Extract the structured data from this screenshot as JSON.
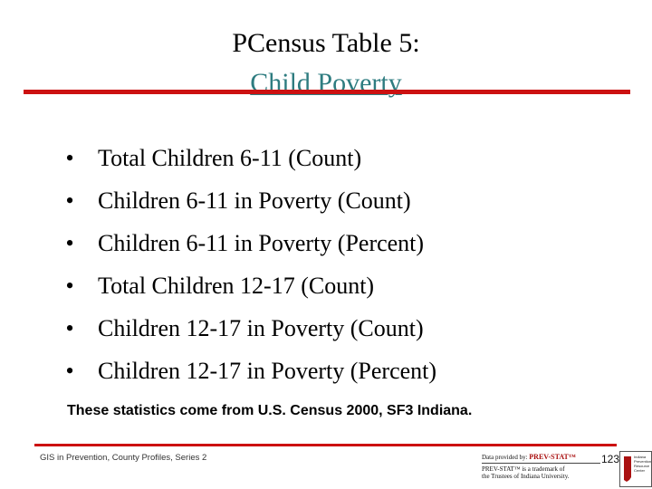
{
  "title": {
    "line1": "PCensus Table 5:",
    "line2": "Child Poverty"
  },
  "bullets": [
    "Total Children 6-11 (Count)",
    "Children 6-11 in Poverty (Count)",
    "Children 6-11 in Poverty (Percent)",
    "Total Children 12-17 (Count)",
    "Children 12-17 in Poverty (Count)",
    "Children 12-17 in Poverty (Percent)"
  ],
  "bullet_glyph": "•",
  "note": "These statistics come from U.S. Census 2000, SF3 Indiana.",
  "footer": {
    "left_text": "GIS in Prevention, County Profiles, Series 2",
    "provided_by": "Data provided by:",
    "brand": "PREV-STAT™",
    "trademark_line1": "PREV-STAT™ is a trademark of",
    "trademark_line2": "the Trustees of Indiana University.",
    "slide_number": "123",
    "logo_text": [
      "Indiana",
      "Prevention",
      "Resource",
      "Center"
    ]
  },
  "colors": {
    "accent_red": "#cc1111",
    "title_link": "#2e7c80"
  }
}
